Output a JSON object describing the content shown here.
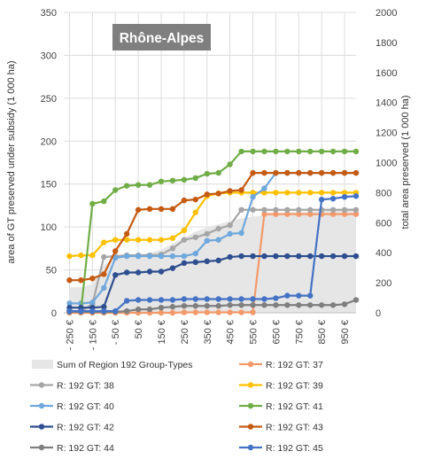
{
  "chart_data": {
    "type": "line",
    "title": "Rhône-Alpes",
    "ylabel": "area of GT preserved under subsidy (1 000 ha)",
    "y2label": "total area preserved (1 000 ha)",
    "xlabel": "",
    "ylim": [
      0,
      350
    ],
    "y2lim": [
      0,
      2000
    ],
    "yticks": [
      0,
      50,
      100,
      150,
      200,
      250,
      300,
      350
    ],
    "y2ticks": [
      0,
      200,
      400,
      600,
      800,
      1000,
      1200,
      1400,
      1600,
      1800,
      2000
    ],
    "xlim": [
      -275,
      1000
    ],
    "xticks": [
      -250,
      -150,
      -50,
      50,
      150,
      250,
      350,
      450,
      550,
      650,
      750,
      850,
      950
    ],
    "xtick_labels": [
      "- 250 €",
      "- 150 €",
      "- 50 €",
      "50 €",
      "150 €",
      "250 €",
      "350 €",
      "450 €",
      "550 €",
      "650 €",
      "750 €",
      "850 €",
      "950 €"
    ],
    "grid": true,
    "legend_position": "bottom",
    "x": [
      -250,
      -200,
      -150,
      -100,
      -50,
      0,
      50,
      100,
      150,
      200,
      250,
      300,
      350,
      400,
      450,
      500,
      550,
      600,
      650,
      700,
      750,
      800,
      850,
      900,
      950,
      1000
    ],
    "area_series": {
      "name": "Sum of Region 192 Group-Types",
      "axis": "right",
      "color": "#e6e6e6",
      "values": [
        170,
        170,
        190,
        320,
        360,
        380,
        390,
        400,
        420,
        460,
        500,
        540,
        570,
        590,
        610,
        630,
        640,
        650,
        660,
        670,
        670,
        675,
        680,
        680,
        690,
        700
      ]
    },
    "series": [
      {
        "name": "R: 192 GT: 37",
        "color": "#f4996a",
        "values": [
          0,
          0,
          0,
          0,
          0,
          0,
          0,
          0,
          0,
          0,
          0.5,
          0.5,
          0.5,
          0.5,
          0.5,
          0.5,
          0.5,
          115,
          115,
          115,
          115,
          115,
          115,
          115,
          115,
          115
        ]
      },
      {
        "name": "R: 192 GT: 38",
        "color": "#a6a6a6",
        "values": [
          2,
          2,
          10,
          65,
          66,
          67,
          67,
          67,
          68,
          75,
          85,
          88,
          92,
          98,
          102,
          120,
          120,
          120,
          120,
          120,
          120,
          120,
          120,
          120,
          120,
          120
        ]
      },
      {
        "name": "R: 192 GT: 39",
        "color": "#ffc000",
        "values": [
          66,
          67,
          67,
          82,
          85,
          85,
          85,
          85,
          85,
          87,
          96,
          117,
          136,
          139,
          140,
          140,
          140,
          140,
          140,
          140,
          140,
          140,
          140,
          140,
          140,
          140
        ]
      },
      {
        "name": "R: 192 GT: 40",
        "color": "#6fa8dc",
        "values": [
          11,
          11,
          12,
          29,
          64,
          66,
          66,
          66,
          66,
          66,
          66,
          69,
          84,
          85,
          92,
          93,
          135,
          145,
          163,
          163,
          163,
          163,
          163,
          163,
          163,
          163
        ]
      },
      {
        "name": "R: 192 GT: 41",
        "color": "#70ad47",
        "values": [
          2,
          2,
          127,
          130,
          143,
          148,
          149,
          149,
          153,
          154,
          155,
          157,
          162,
          163,
          173,
          188,
          188,
          188,
          188,
          188,
          188,
          188,
          188,
          188,
          188,
          188
        ]
      },
      {
        "name": "R: 192 GT: 42",
        "color": "#2e4e8f",
        "values": [
          6,
          6,
          6,
          7,
          44,
          47,
          47,
          48,
          48,
          52,
          58,
          59,
          60,
          61,
          65,
          66,
          66,
          66,
          66,
          66,
          66,
          66,
          66,
          66,
          66,
          66
        ]
      },
      {
        "name": "R: 192 GT: 43",
        "color": "#c55a11",
        "values": [
          38,
          38,
          40,
          45,
          72,
          92,
          120,
          121,
          121,
          121,
          131,
          132,
          138,
          139,
          142,
          143,
          163,
          163,
          163,
          163,
          163,
          163,
          163,
          163,
          163,
          163
        ]
      },
      {
        "name": "R: 192 GT: 44",
        "color": "#7f7f7f",
        "values": [
          1,
          1,
          1,
          1,
          1,
          2,
          4,
          4,
          6,
          7,
          8,
          8,
          8,
          8,
          9,
          9,
          9,
          9,
          9,
          9,
          9,
          9,
          9,
          9,
          10,
          15
        ]
      },
      {
        "name": "R: 192 GT: 45",
        "color": "#4472c4",
        "values": [
          2,
          2,
          2,
          2,
          2,
          14,
          15,
          15,
          15,
          15,
          16,
          16,
          16,
          16,
          16,
          16,
          16,
          16,
          17,
          20,
          20,
          20,
          132,
          133,
          135,
          136
        ]
      }
    ]
  }
}
